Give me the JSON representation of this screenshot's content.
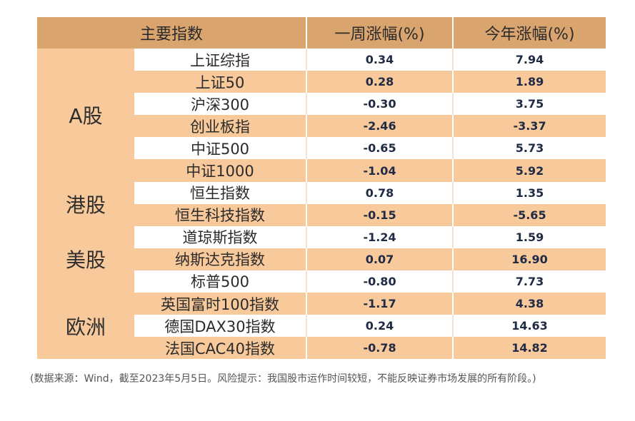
{
  "table": {
    "headers": [
      "主要指数",
      "一周涨幅(%)",
      "今年涨幅(%)"
    ],
    "groups": [
      {
        "name": "A股",
        "rows": [
          {
            "index": "上证综指",
            "week": "0.34",
            "ytd": "7.94"
          },
          {
            "index": "上证50",
            "week": "0.28",
            "ytd": "1.89"
          },
          {
            "index": "沪深300",
            "week": "-0.30",
            "ytd": "3.75"
          },
          {
            "index": "创业板指",
            "week": "-2.46",
            "ytd": "-3.37"
          },
          {
            "index": "中证500",
            "week": "-0.65",
            "ytd": "5.73"
          },
          {
            "index": "中证1000",
            "week": "-1.04",
            "ytd": "5.92"
          }
        ]
      },
      {
        "name": "港股",
        "rows": [
          {
            "index": "恒生指数",
            "week": "0.78",
            "ytd": "1.35"
          },
          {
            "index": "恒生科技指数",
            "week": "-0.15",
            "ytd": "-5.65"
          }
        ]
      },
      {
        "name": "美股",
        "rows": [
          {
            "index": "道琼斯指数",
            "week": "-1.24",
            "ytd": "1.59"
          },
          {
            "index": "纳斯达克指数",
            "week": "0.07",
            "ytd": "16.90"
          },
          {
            "index": "标普500",
            "week": "-0.80",
            "ytd": "7.73"
          }
        ]
      },
      {
        "name": "欧洲",
        "rows": [
          {
            "index": "英国富时100指数",
            "week": "-1.17",
            "ytd": "4.38"
          },
          {
            "index": "德国DAX30指数",
            "week": "0.24",
            "ytd": "14.63"
          },
          {
            "index": "法国CAC40指数",
            "week": "-0.78",
            "ytd": "14.82"
          }
        ]
      }
    ]
  },
  "note": "(数据来源：Wind，截至2023年5月5日。风险提示：我国股市运作时间较短，不能反映证券市场发展的所有阶段。)",
  "colors": {
    "header": "#d9a46e",
    "band": "#f8c99a",
    "white": "#ffffff"
  }
}
